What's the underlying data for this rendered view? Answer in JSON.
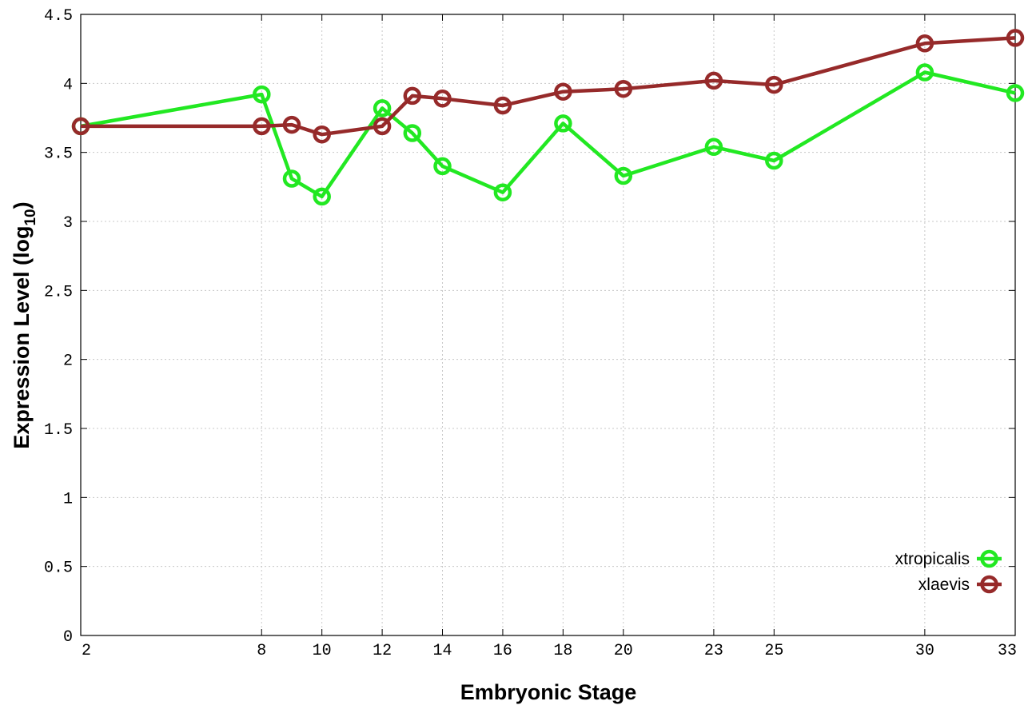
{
  "chart_data": {
    "type": "line",
    "title": "",
    "xlabel": "Embryonic Stage",
    "ylabel": "Expression Level (log",
    "ylabel_subscript": "10",
    "ylabel_suffix": ")",
    "xlim": [
      2,
      33
    ],
    "ylim": [
      0,
      4.5
    ],
    "x_ticks": [
      2,
      8,
      10,
      12,
      14,
      16,
      18,
      20,
      23,
      25,
      30,
      33
    ],
    "x_tick_labels": [
      "2",
      "8",
      "10",
      "12",
      "14",
      "16",
      "18",
      "20",
      "23",
      "25",
      "30",
      "33"
    ],
    "y_ticks": [
      0,
      0.5,
      1,
      1.5,
      2,
      2.5,
      3,
      3.5,
      4,
      4.5
    ],
    "y_tick_labels": [
      "0",
      "0.5",
      "1",
      "1.5",
      "2",
      "2.5",
      "3",
      "3.5",
      "4",
      "4.5"
    ],
    "grid": true,
    "legend_position": "bottom-right",
    "series": [
      {
        "name": "xtropicalis",
        "color": "#22e822",
        "x": [
          2,
          8,
          9,
          10,
          12,
          13,
          14,
          16,
          18,
          20,
          23,
          25,
          30,
          33
        ],
        "values": [
          3.69,
          3.92,
          3.31,
          3.18,
          3.82,
          3.64,
          3.4,
          3.21,
          3.71,
          3.33,
          3.54,
          3.44,
          4.08,
          3.93
        ]
      },
      {
        "name": "xlaevis",
        "color": "#962a2a",
        "x": [
          2,
          8,
          9,
          10,
          12,
          13,
          14,
          16,
          18,
          20,
          23,
          25,
          30,
          33
        ],
        "values": [
          3.69,
          3.69,
          3.7,
          3.63,
          3.69,
          3.91,
          3.89,
          3.84,
          3.94,
          3.96,
          4.02,
          3.99,
          4.29,
          4.33
        ]
      }
    ]
  }
}
